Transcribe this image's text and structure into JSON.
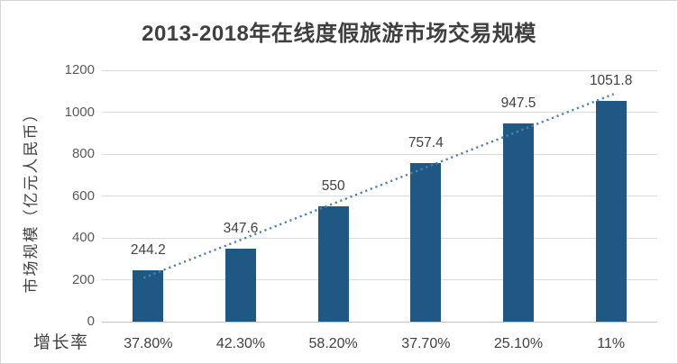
{
  "chart_data": {
    "type": "bar",
    "title": "2013-2018年在线度假旅游市场交易规模",
    "ylabel": "市场规模（亿元人民币）",
    "xlabel": "",
    "ylim": [
      0,
      1200
    ],
    "yticks": [
      0,
      200,
      400,
      600,
      800,
      1000,
      1200
    ],
    "grid": true,
    "legend": "none",
    "values": [
      244.2,
      347.6,
      550,
      757.4,
      947.5,
      1051.8
    ],
    "data_labels": [
      "244.2",
      "347.6",
      "550",
      "757.4",
      "947.5",
      "1051.8"
    ],
    "growth_row": {
      "label": "增长率",
      "values": [
        "37.80%",
        "42.30%",
        "58.20%",
        "37.70%",
        "25.10%",
        "11%"
      ]
    },
    "trendline": {
      "style": "dotted",
      "fit": "linear"
    }
  },
  "colors": {
    "bar": "#1f5882",
    "trend": "#4f81b1",
    "gridline": "#dadada",
    "axis_line": "#c3c3c3",
    "title_text": "#3f3f3f",
    "label_text": "#404040",
    "tick_text": "#595959",
    "border": "#d5d5d5",
    "background": "#ffffff"
  }
}
